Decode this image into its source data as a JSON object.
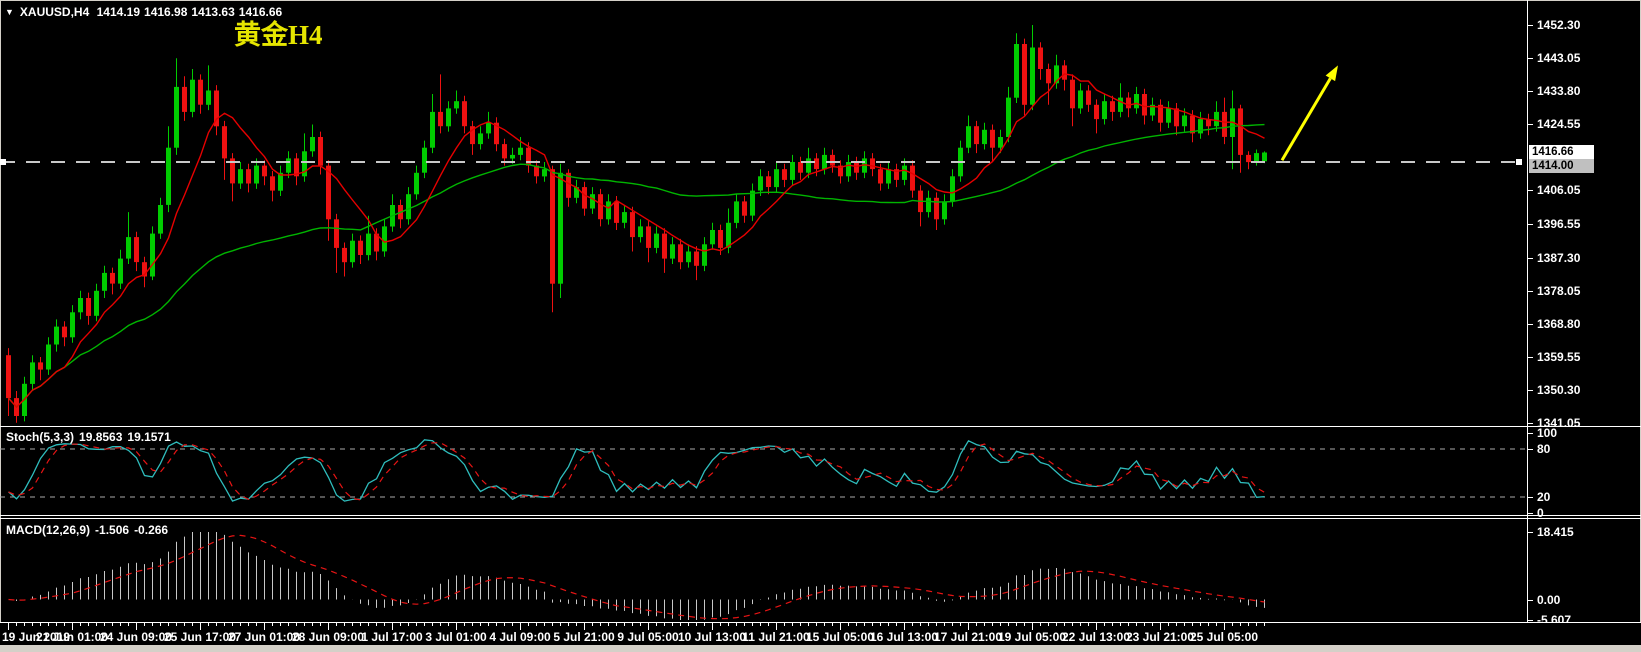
{
  "header": {
    "dropdown_glyph": "▼",
    "symbol": "XAUUSD,H4",
    "open": "1414.19",
    "high": "1416.98",
    "low": "1413.63",
    "close": "1416.66"
  },
  "annotation": {
    "text": "黄金H4",
    "color": "#e6e600"
  },
  "axes": {
    "price_ticks": [
      "1452.30",
      "1443.05",
      "1433.80",
      "1424.55",
      "1406.05",
      "1396.55",
      "1387.30",
      "1378.05",
      "1368.80",
      "1359.55",
      "1350.30",
      "1341.05"
    ],
    "stoch_ticks": [
      "100",
      "80",
      "20",
      "0"
    ],
    "macd_ticks": [
      "18.415",
      "0.00",
      "-5.607"
    ],
    "time_labels": [
      "19 Jun 2019",
      "21 Jun 01:00",
      "24 Jun 09:00",
      "25 Jun 17:00",
      "27 Jun 01:00",
      "28 Jun 09:00",
      "1 Jul 17:00",
      "3 Jul 01:00",
      "4 Jul 09:00",
      "5 Jul 21:00",
      "9 Jul 05:00",
      "10 Jul 13:00",
      "11 Jul 21:00",
      "15 Jul 05:00",
      "16 Jul 13:00",
      "17 Jul 21:00",
      "19 Jul 05:00",
      "22 Jul 13:00",
      "23 Jul 21:00",
      "25 Jul 05:00"
    ]
  },
  "chart_data": {
    "type": "candlestick",
    "symbol": "XAUUSD",
    "timeframe": "H4",
    "title": "黄金H4",
    "price_axis_top": 1452.3,
    "price_axis_bottom": 1341.05,
    "colors": {
      "bull": "#00cc00",
      "bear": "#ee1111",
      "background": "#000000",
      "ma_fast": "#e60000",
      "ma_slow": "#00b400",
      "hline": "#c8c8c8",
      "arrow": "#ffff00"
    },
    "overlays": {
      "ma_fast": {
        "type": "sma",
        "period": 8
      },
      "ma_slow": {
        "type": "sma",
        "period": 45
      }
    },
    "hline": {
      "price": 1414.0,
      "label": "1414.00",
      "style": "dashed"
    },
    "current_price": {
      "value": 1416.66,
      "label": "1416.66"
    },
    "arrow": {
      "from_bar": 159.5,
      "from_price": 1414.5,
      "to_bar": 166.5,
      "to_price": 1441.0
    },
    "indicators": [
      {
        "type": "stochastic",
        "label": "Stoch(5,3,3)",
        "k": 5,
        "d": 3,
        "slowing": 3,
        "value_main": "19.8563",
        "value_signal": "19.1571",
        "levels": [
          80,
          20
        ],
        "range": [
          0,
          100
        ],
        "colors": {
          "main": "#2fbdbd",
          "signal": "#e61414",
          "levels": "#aaaaaa"
        }
      },
      {
        "type": "macd",
        "label": "MACD(12,26,9)",
        "fast": 12,
        "slow": 26,
        "signal": 9,
        "value_main": "-1.506",
        "value_signal": "-0.266",
        "range": [
          -5.607,
          18.415
        ],
        "colors": {
          "histogram": "#c8c8c8",
          "signal": "#e61414"
        }
      }
    ],
    "ohlc": [
      [
        1360,
        1362,
        1343,
        1348
      ],
      [
        1348,
        1350,
        1341.1,
        1343
      ],
      [
        1343,
        1354,
        1341.5,
        1352
      ],
      [
        1352,
        1360,
        1350,
        1358
      ],
      [
        1358,
        1359.5,
        1353,
        1356
      ],
      [
        1356,
        1365,
        1354.5,
        1363
      ],
      [
        1363,
        1370,
        1361,
        1368
      ],
      [
        1368,
        1369.5,
        1362.5,
        1365
      ],
      [
        1365,
        1374,
        1363.5,
        1372
      ],
      [
        1372,
        1378,
        1370,
        1376
      ],
      [
        1376,
        1377.5,
        1368.5,
        1371
      ],
      [
        1371,
        1380,
        1369.5,
        1378
      ],
      [
        1378,
        1385,
        1376,
        1383
      ],
      [
        1383,
        1384.5,
        1377,
        1380
      ],
      [
        1380,
        1389.5,
        1378.5,
        1387
      ],
      [
        1387,
        1400,
        1385.5,
        1393
      ],
      [
        1393,
        1394.5,
        1383.5,
        1386
      ],
      [
        1386,
        1387.5,
        1379,
        1382
      ],
      [
        1382,
        1396,
        1381,
        1394
      ],
      [
        1394,
        1404,
        1392.5,
        1402
      ],
      [
        1402,
        1424,
        1400,
        1418
      ],
      [
        1418,
        1443,
        1416,
        1435
      ],
      [
        1435,
        1438,
        1425.5,
        1428
      ],
      [
        1428,
        1440,
        1426.5,
        1437
      ],
      [
        1437,
        1438.5,
        1427.5,
        1430
      ],
      [
        1430,
        1441,
        1428.5,
        1434
      ],
      [
        1434,
        1435.5,
        1421.5,
        1424
      ],
      [
        1424,
        1425.5,
        1409,
        1415
      ],
      [
        1415,
        1416.5,
        1403,
        1408
      ],
      [
        1408,
        1414,
        1406.5,
        1412
      ],
      [
        1412,
        1413.5,
        1405.5,
        1408
      ],
      [
        1408,
        1415,
        1406.5,
        1413
      ],
      [
        1413,
        1414.5,
        1407.5,
        1410
      ],
      [
        1410,
        1411.5,
        1403,
        1406
      ],
      [
        1406,
        1413,
        1404.5,
        1411
      ],
      [
        1411,
        1417,
        1409.5,
        1415
      ],
      [
        1415,
        1416.5,
        1407.5,
        1410
      ],
      [
        1410,
        1422,
        1408.5,
        1417
      ],
      [
        1417,
        1424.5,
        1415.5,
        1421
      ],
      [
        1421,
        1422.5,
        1410.5,
        1413
      ],
      [
        1413,
        1414.5,
        1392,
        1398
      ],
      [
        1398,
        1399.5,
        1383,
        1390
      ],
      [
        1390,
        1391.5,
        1382,
        1386
      ],
      [
        1386,
        1394,
        1384.5,
        1392
      ],
      [
        1392,
        1393.5,
        1385.5,
        1388
      ],
      [
        1388,
        1399,
        1386.5,
        1394
      ],
      [
        1394,
        1395.5,
        1386.5,
        1389
      ],
      [
        1389,
        1398,
        1387.5,
        1396
      ],
      [
        1396,
        1405,
        1394.5,
        1402
      ],
      [
        1402,
        1403.5,
        1395.5,
        1398
      ],
      [
        1398,
        1407,
        1396.5,
        1405
      ],
      [
        1405,
        1413,
        1403.5,
        1411
      ],
      [
        1411,
        1420,
        1409.5,
        1418
      ],
      [
        1418,
        1433,
        1416.5,
        1428
      ],
      [
        1428,
        1438.5,
        1422,
        1424
      ],
      [
        1424,
        1431,
        1422.5,
        1429
      ],
      [
        1429,
        1434,
        1427.5,
        1431
      ],
      [
        1431,
        1432.5,
        1422,
        1424
      ],
      [
        1424,
        1425.5,
        1416,
        1419
      ],
      [
        1419,
        1424,
        1417.5,
        1422
      ],
      [
        1422,
        1428,
        1420.5,
        1425
      ],
      [
        1425,
        1426.5,
        1417,
        1419
      ],
      [
        1419,
        1420.5,
        1413,
        1415
      ],
      [
        1415,
        1418,
        1413.5,
        1416
      ],
      [
        1416,
        1421,
        1414.5,
        1418
      ],
      [
        1418,
        1419.5,
        1411,
        1413
      ],
      [
        1413,
        1414.5,
        1408,
        1410
      ],
      [
        1410,
        1414,
        1408.5,
        1412
      ],
      [
        1412,
        1413,
        1372,
        1380
      ],
      [
        1380,
        1413.5,
        1376,
        1411
      ],
      [
        1411,
        1412,
        1401.5,
        1404
      ],
      [
        1404,
        1409,
        1402.5,
        1407
      ],
      [
        1407,
        1408.5,
        1399,
        1401
      ],
      [
        1401,
        1407,
        1399.5,
        1405
      ],
      [
        1405,
        1406.5,
        1396,
        1398
      ],
      [
        1398,
        1405,
        1396.5,
        1403
      ],
      [
        1403,
        1404.5,
        1395,
        1397
      ],
      [
        1397,
        1402,
        1395.5,
        1400
      ],
      [
        1400,
        1401.5,
        1389,
        1393
      ],
      [
        1393,
        1398,
        1391.5,
        1396
      ],
      [
        1396,
        1397.5,
        1386,
        1390
      ],
      [
        1390,
        1396,
        1388.5,
        1394
      ],
      [
        1394,
        1395.5,
        1383,
        1387
      ],
      [
        1387,
        1393,
        1385.5,
        1391
      ],
      [
        1391,
        1392.5,
        1384,
        1386
      ],
      [
        1386,
        1391,
        1384.5,
        1389
      ],
      [
        1389,
        1390.5,
        1381,
        1385
      ],
      [
        1385,
        1393,
        1383.5,
        1391
      ],
      [
        1391,
        1397,
        1389.5,
        1395
      ],
      [
        1395,
        1396.5,
        1388,
        1390
      ],
      [
        1390,
        1401,
        1388.5,
        1397
      ],
      [
        1397,
        1405,
        1395.5,
        1403
      ],
      [
        1403,
        1404.5,
        1397,
        1399
      ],
      [
        1399,
        1408,
        1397.5,
        1406
      ],
      [
        1406,
        1412,
        1404.5,
        1410
      ],
      [
        1410,
        1411.5,
        1405,
        1407
      ],
      [
        1407,
        1414,
        1405.5,
        1412
      ],
      [
        1412,
        1413.5,
        1407,
        1409
      ],
      [
        1409,
        1416,
        1407.5,
        1414
      ],
      [
        1414,
        1415.5,
        1409,
        1411
      ],
      [
        1411,
        1418,
        1409.5,
        1415
      ],
      [
        1415,
        1416.5,
        1410,
        1412
      ],
      [
        1412,
        1418,
        1410.5,
        1416
      ],
      [
        1416,
        1417.5,
        1411,
        1413
      ],
      [
        1413,
        1414.5,
        1408,
        1410
      ],
      [
        1410,
        1416,
        1408.5,
        1414
      ],
      [
        1414,
        1415.5,
        1409,
        1411
      ],
      [
        1411,
        1417,
        1409.5,
        1415
      ],
      [
        1415,
        1416.5,
        1410,
        1412
      ],
      [
        1412,
        1413.5,
        1406,
        1408
      ],
      [
        1408,
        1414,
        1406.5,
        1412
      ],
      [
        1412,
        1413.5,
        1407,
        1409
      ],
      [
        1409,
        1415,
        1407.5,
        1413
      ],
      [
        1413,
        1414.5,
        1404,
        1406
      ],
      [
        1406,
        1407.5,
        1396,
        1400
      ],
      [
        1400,
        1406,
        1398.5,
        1404
      ],
      [
        1404,
        1405.5,
        1395,
        1398
      ],
      [
        1398,
        1405,
        1396.5,
        1403
      ],
      [
        1403,
        1412,
        1401.5,
        1410
      ],
      [
        1410,
        1420,
        1408.5,
        1418
      ],
      [
        1418,
        1427,
        1416.5,
        1424
      ],
      [
        1424,
        1425.5,
        1416.5,
        1419
      ],
      [
        1419,
        1425,
        1417.5,
        1423
      ],
      [
        1423,
        1424.5,
        1414,
        1418
      ],
      [
        1418,
        1423,
        1416.5,
        1421
      ],
      [
        1421,
        1435,
        1419.5,
        1432
      ],
      [
        1432,
        1450,
        1430.5,
        1447
      ],
      [
        1447,
        1448.5,
        1427,
        1430
      ],
      [
        1430,
        1452.3,
        1428.5,
        1446
      ],
      [
        1446,
        1447.5,
        1437,
        1440
      ],
      [
        1440,
        1441.5,
        1430,
        1436
      ],
      [
        1436,
        1444,
        1434.5,
        1441
      ],
      [
        1441,
        1442.5,
        1434,
        1437
      ],
      [
        1437,
        1438.5,
        1424,
        1429
      ],
      [
        1429,
        1436,
        1427.5,
        1434
      ],
      [
        1434,
        1435.5,
        1428,
        1430
      ],
      [
        1430,
        1431.5,
        1422,
        1426
      ],
      [
        1426,
        1433,
        1424.5,
        1431
      ],
      [
        1431,
        1432.5,
        1425.5,
        1428
      ],
      [
        1428,
        1436,
        1426.5,
        1432
      ],
      [
        1432,
        1433.5,
        1426.5,
        1429
      ],
      [
        1429,
        1435,
        1427.5,
        1433
      ],
      [
        1433,
        1434.5,
        1424.5,
        1427
      ],
      [
        1427,
        1432,
        1425.5,
        1430
      ],
      [
        1430,
        1431.5,
        1422.5,
        1425
      ],
      [
        1425,
        1431,
        1423.5,
        1429
      ],
      [
        1429,
        1430.5,
        1421.5,
        1424
      ],
      [
        1424,
        1429,
        1422.5,
        1427
      ],
      [
        1427,
        1428.5,
        1419.5,
        1422
      ],
      [
        1422,
        1428,
        1420.5,
        1426
      ],
      [
        1426,
        1427.5,
        1421.5,
        1424
      ],
      [
        1424,
        1431,
        1422.5,
        1428
      ],
      [
        1428,
        1432,
        1419,
        1421
      ],
      [
        1421,
        1434,
        1412,
        1429
      ],
      [
        1429,
        1430,
        1411,
        1416
      ],
      [
        1416,
        1417,
        1412,
        1414
      ],
      [
        1414,
        1417.5,
        1413,
        1416.5
      ],
      [
        1414.19,
        1416.98,
        1413.63,
        1416.66
      ]
    ]
  }
}
